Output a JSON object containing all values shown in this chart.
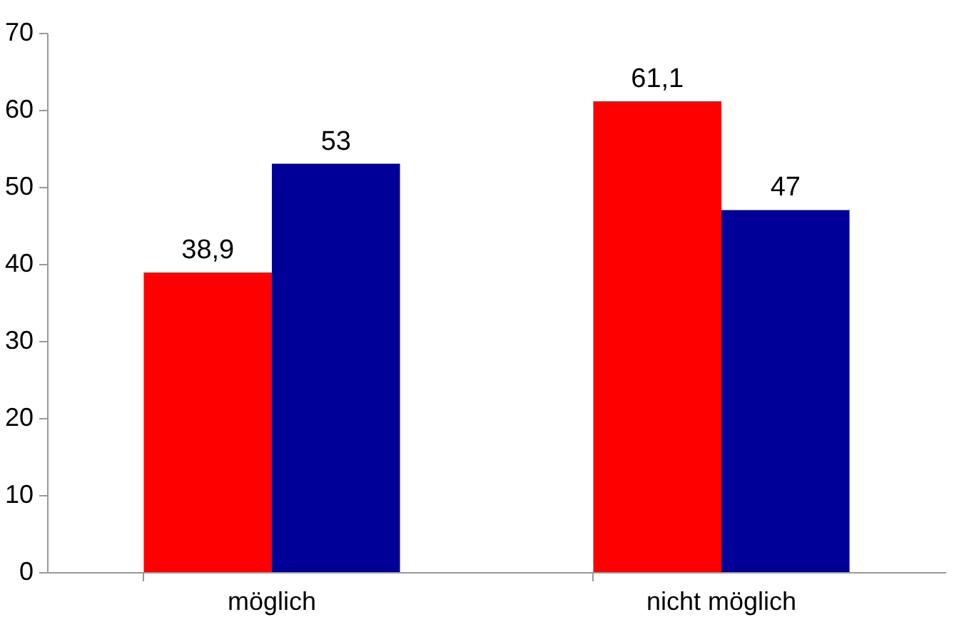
{
  "chart_data": {
    "type": "bar",
    "categories": [
      "möglich",
      "nicht möglich"
    ],
    "series": [
      {
        "color": "#ff0000",
        "values": [
          38.9,
          61.1
        ],
        "value_labels": [
          "38,9",
          "61,1"
        ]
      },
      {
        "color": "#000099",
        "values": [
          53,
          47
        ],
        "value_labels": [
          "53",
          "47"
        ]
      }
    ],
    "ylim": [
      0,
      70
    ],
    "yticks": [
      0,
      10,
      20,
      30,
      40,
      50,
      60,
      70
    ],
    "grid": false,
    "legend": false
  }
}
